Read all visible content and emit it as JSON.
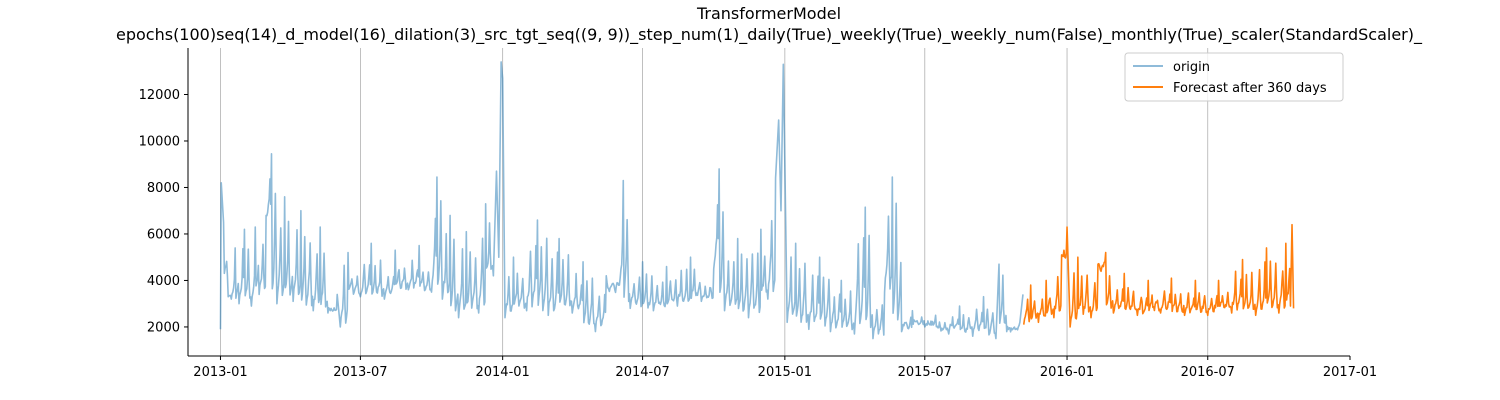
{
  "chart_data": {
    "type": "line",
    "title": "TransformerModel",
    "subtitle": "epochs(100)seq(14)_d_model(16)_dilation(3)_src_tgt_seq((9, 9))_step_num(1)_daily(True)_weekly(True)_weekly_num(False)_monthly(True)_scaler(StandardScaler)_",
    "xlabel": "",
    "ylabel": "",
    "x_axis_type": "date",
    "xlim": [
      "2012-11-20",
      "2017-01-01"
    ],
    "ylim": [
      750,
      14000
    ],
    "x_ticks": [
      "2013-01",
      "2013-07",
      "2014-01",
      "2014-07",
      "2015-01",
      "2015-07",
      "2016-01",
      "2016-07",
      "2017-01"
    ],
    "y_ticks": [
      2000,
      4000,
      6000,
      8000,
      10000,
      12000
    ],
    "grid": "vertical",
    "legend": {
      "position": "top-right"
    },
    "series": [
      {
        "name": "origin",
        "color": "#1f77b4",
        "alpha": 0.5,
        "sampling": "approximate daily values, weekly-periodic",
        "points": [
          [
            "2013-01-01",
            1900
          ],
          [
            "2013-01-02",
            8200
          ],
          [
            "2013-01-05",
            6500
          ],
          [
            "2013-01-10",
            4200
          ],
          [
            "2013-01-15",
            3200
          ],
          [
            "2013-01-20",
            5400
          ],
          [
            "2013-01-25",
            3000
          ],
          [
            "2013-02-01",
            6200
          ],
          [
            "2013-02-10",
            2900
          ],
          [
            "2013-02-15",
            6300
          ],
          [
            "2013-02-20",
            3400
          ],
          [
            "2013-03-01",
            6800
          ],
          [
            "2013-03-08",
            9450
          ],
          [
            "2013-03-15",
            3000
          ],
          [
            "2013-03-25",
            7600
          ],
          [
            "2013-04-05",
            3100
          ],
          [
            "2013-04-15",
            7000
          ],
          [
            "2013-05-01",
            2700
          ],
          [
            "2013-05-10",
            6300
          ],
          [
            "2013-05-20",
            2600
          ],
          [
            "2013-06-01",
            3400
          ],
          [
            "2013-06-05",
            2000
          ],
          [
            "2013-06-15",
            5200
          ],
          [
            "2013-07-01",
            3300
          ],
          [
            "2013-07-15",
            5600
          ],
          [
            "2013-08-01",
            3200
          ],
          [
            "2013-08-15",
            5300
          ],
          [
            "2013-09-01",
            3600
          ],
          [
            "2013-09-15",
            5500
          ],
          [
            "2013-10-01",
            3500
          ],
          [
            "2013-10-08",
            8450
          ],
          [
            "2013-10-15",
            3200
          ],
          [
            "2013-10-25",
            6800
          ],
          [
            "2013-11-05",
            2400
          ],
          [
            "2013-11-15",
            6100
          ],
          [
            "2013-12-01",
            2600
          ],
          [
            "2013-12-10",
            7300
          ],
          [
            "2013-12-20",
            4200
          ],
          [
            "2013-12-24",
            8700
          ],
          [
            "2013-12-27",
            5000
          ],
          [
            "2013-12-30",
            13400
          ],
          [
            "2014-01-01",
            12700
          ],
          [
            "2014-01-04",
            2400
          ],
          [
            "2014-01-15",
            5000
          ],
          [
            "2014-02-01",
            2700
          ],
          [
            "2014-02-15",
            6600
          ],
          [
            "2014-03-01",
            2500
          ],
          [
            "2014-03-15",
            5800
          ],
          [
            "2014-04-01",
            2600
          ],
          [
            "2014-04-15",
            4800
          ],
          [
            "2014-05-01",
            1800
          ],
          [
            "2014-05-15",
            4200
          ],
          [
            "2014-06-01",
            3800
          ],
          [
            "2014-06-06",
            8300
          ],
          [
            "2014-06-15",
            2800
          ],
          [
            "2014-07-01",
            4800
          ],
          [
            "2014-07-15",
            2700
          ],
          [
            "2014-08-01",
            4600
          ],
          [
            "2014-08-15",
            2900
          ],
          [
            "2014-09-01",
            5000
          ],
          [
            "2014-09-15",
            3100
          ],
          [
            "2014-10-01",
            4500
          ],
          [
            "2014-10-08",
            8800
          ],
          [
            "2014-10-15",
            2700
          ],
          [
            "2014-11-01",
            5800
          ],
          [
            "2014-11-15",
            2400
          ],
          [
            "2014-12-01",
            6200
          ],
          [
            "2014-12-10",
            3200
          ],
          [
            "2014-12-20",
            8400
          ],
          [
            "2014-12-24",
            10900
          ],
          [
            "2014-12-27",
            7000
          ],
          [
            "2014-12-30",
            13300
          ],
          [
            "2015-01-01",
            9000
          ],
          [
            "2015-01-04",
            2200
          ],
          [
            "2015-01-15",
            5600
          ],
          [
            "2015-02-01",
            1900
          ],
          [
            "2015-02-15",
            5000
          ],
          [
            "2015-03-01",
            1800
          ],
          [
            "2015-03-15",
            4000
          ],
          [
            "2015-04-01",
            1700
          ],
          [
            "2015-04-15",
            7150
          ],
          [
            "2015-04-25",
            1500
          ],
          [
            "2015-05-10",
            3500
          ],
          [
            "2015-05-20",
            8450
          ],
          [
            "2015-06-01",
            1800
          ],
          [
            "2015-06-15",
            2700
          ],
          [
            "2015-07-01",
            2000
          ],
          [
            "2015-07-15",
            2500
          ],
          [
            "2015-08-01",
            1700
          ],
          [
            "2015-08-15",
            2900
          ],
          [
            "2015-09-01",
            1600
          ],
          [
            "2015-09-15",
            3300
          ],
          [
            "2015-10-01",
            1500
          ],
          [
            "2015-10-05",
            4700
          ],
          [
            "2015-10-15",
            1800
          ],
          [
            "2015-11-01",
            2200
          ],
          [
            "2015-11-05",
            3400
          ]
        ]
      },
      {
        "name": "Forecast after 360 days",
        "color": "#ff7f0e",
        "alpha": 1.0,
        "sampling": "approximate daily values, weekly-periodic",
        "points": [
          [
            "2015-11-06",
            2100
          ],
          [
            "2015-11-15",
            3800
          ],
          [
            "2015-11-25",
            2200
          ],
          [
            "2015-12-05",
            4000
          ],
          [
            "2015-12-15",
            2400
          ],
          [
            "2015-12-25",
            5100
          ],
          [
            "2016-01-01",
            6300
          ],
          [
            "2016-01-05",
            2000
          ],
          [
            "2016-01-15",
            5000
          ],
          [
            "2016-02-01",
            2400
          ],
          [
            "2016-02-10",
            4700
          ],
          [
            "2016-02-20",
            5200
          ],
          [
            "2016-03-01",
            2600
          ],
          [
            "2016-03-15",
            4300
          ],
          [
            "2016-04-01",
            2500
          ],
          [
            "2016-04-15",
            4000
          ],
          [
            "2016-05-01",
            2600
          ],
          [
            "2016-05-15",
            4100
          ],
          [
            "2016-06-01",
            2500
          ],
          [
            "2016-06-15",
            4000
          ],
          [
            "2016-07-01",
            2500
          ],
          [
            "2016-07-15",
            4000
          ],
          [
            "2016-08-01",
            2600
          ],
          [
            "2016-08-15",
            4900
          ],
          [
            "2016-09-01",
            2500
          ],
          [
            "2016-09-15",
            5400
          ],
          [
            "2016-10-01",
            2600
          ],
          [
            "2016-10-10",
            5600
          ],
          [
            "2016-10-16",
            2900
          ],
          [
            "2016-10-18",
            6400
          ],
          [
            "2016-10-20",
            2800
          ]
        ]
      }
    ]
  }
}
